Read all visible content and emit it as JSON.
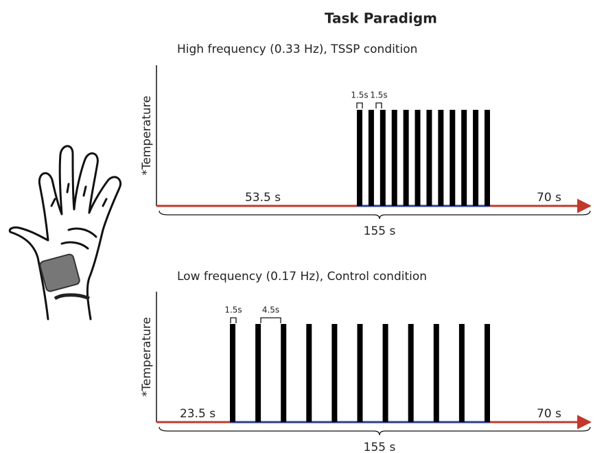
{
  "header": {
    "title": "Task Paradigm"
  },
  "panels": [
    {
      "subtitle": "High frequency (0.33 Hz), TSSP condition",
      "y_label": "*Temperature",
      "pre_label": "53.5 s",
      "post_label": "70 s",
      "total_label": "155 s",
      "interval_labels": [
        "1.5s",
        "1.5s"
      ]
    },
    {
      "subtitle": "Low frequency (0.17 Hz), Control condition",
      "y_label": "*Temperature",
      "pre_label": "23.5 s",
      "post_label": "70 s",
      "total_label": "155 s",
      "interval_labels": [
        "1.5s",
        "4.5s"
      ]
    }
  ]
}
